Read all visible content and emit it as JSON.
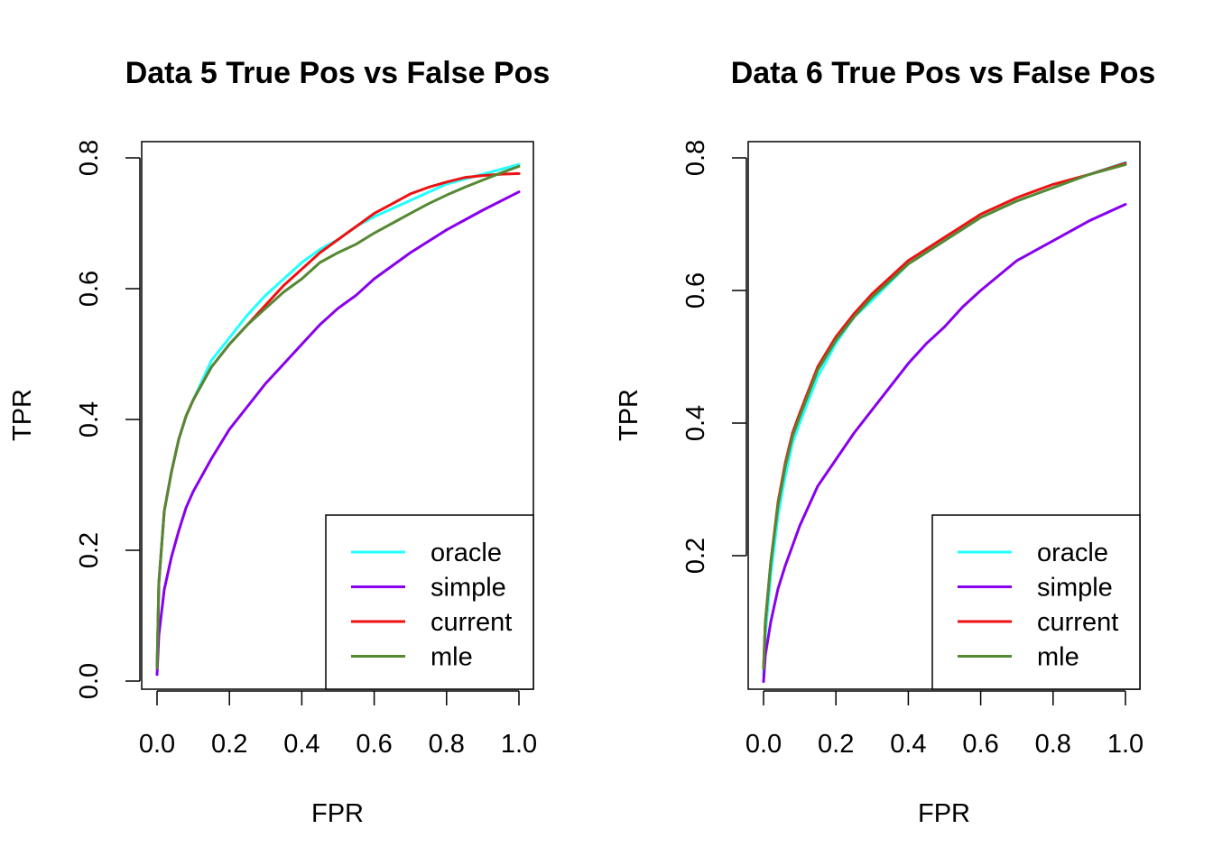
{
  "chart_data": [
    {
      "type": "line",
      "title": "Data 5 True Pos vs False Pos",
      "xlabel": "FPR",
      "ylabel": "TPR",
      "xlim": [
        0,
        1
      ],
      "ylim": [
        0,
        0.8
      ],
      "x_ticks": [
        "0.0",
        "0.2",
        "0.4",
        "0.6",
        "0.8",
        "1.0"
      ],
      "y_ticks": [
        "0.0",
        "0.2",
        "0.4",
        "0.6",
        "0.8"
      ],
      "legend_position": "bottom-right",
      "grid": false,
      "series": [
        {
          "name": "oracle",
          "color": "#22ffff",
          "x": [
            0,
            0.005,
            0.02,
            0.04,
            0.06,
            0.08,
            0.1,
            0.15,
            0.2,
            0.25,
            0.3,
            0.35,
            0.4,
            0.45,
            0.5,
            0.55,
            0.6,
            0.7,
            0.8,
            0.9,
            1.0
          ],
          "y": [
            0.02,
            0.15,
            0.26,
            0.32,
            0.37,
            0.405,
            0.43,
            0.49,
            0.525,
            0.56,
            0.59,
            0.615,
            0.64,
            0.66,
            0.675,
            0.695,
            0.71,
            0.735,
            0.76,
            0.775,
            0.79
          ]
        },
        {
          "name": "simple",
          "color": "#8800ee",
          "x": [
            0,
            0.005,
            0.02,
            0.04,
            0.06,
            0.08,
            0.1,
            0.15,
            0.2,
            0.25,
            0.3,
            0.35,
            0.4,
            0.45,
            0.5,
            0.55,
            0.6,
            0.7,
            0.8,
            0.9,
            1.0
          ],
          "y": [
            0.01,
            0.07,
            0.14,
            0.19,
            0.23,
            0.265,
            0.29,
            0.34,
            0.385,
            0.42,
            0.455,
            0.485,
            0.515,
            0.545,
            0.57,
            0.59,
            0.615,
            0.655,
            0.69,
            0.72,
            0.748
          ]
        },
        {
          "name": "current",
          "color": "#ee1111",
          "x": [
            0,
            0.005,
            0.02,
            0.04,
            0.06,
            0.08,
            0.1,
            0.15,
            0.2,
            0.25,
            0.3,
            0.35,
            0.4,
            0.45,
            0.5,
            0.55,
            0.6,
            0.65,
            0.7,
            0.75,
            0.8,
            0.85,
            0.9,
            0.95,
            1.0
          ],
          "y": [
            0.02,
            0.15,
            0.26,
            0.32,
            0.37,
            0.405,
            0.43,
            0.48,
            0.515,
            0.545,
            0.575,
            0.605,
            0.63,
            0.655,
            0.675,
            0.695,
            0.715,
            0.73,
            0.745,
            0.755,
            0.763,
            0.77,
            0.773,
            0.775,
            0.776
          ]
        },
        {
          "name": "mle",
          "color": "#558833",
          "x": [
            0,
            0.005,
            0.02,
            0.04,
            0.06,
            0.08,
            0.1,
            0.15,
            0.2,
            0.25,
            0.3,
            0.35,
            0.4,
            0.45,
            0.5,
            0.55,
            0.6,
            0.65,
            0.7,
            0.75,
            0.8,
            0.85,
            0.9,
            0.95,
            1.0
          ],
          "y": [
            0.02,
            0.15,
            0.26,
            0.32,
            0.37,
            0.405,
            0.43,
            0.48,
            0.515,
            0.545,
            0.57,
            0.595,
            0.615,
            0.64,
            0.655,
            0.668,
            0.685,
            0.7,
            0.715,
            0.73,
            0.743,
            0.755,
            0.766,
            0.777,
            0.787
          ]
        }
      ]
    },
    {
      "type": "line",
      "title": "Data 6 True Pos vs False Pos",
      "xlabel": "FPR",
      "ylabel": "TPR",
      "xlim": [
        0,
        1
      ],
      "ylim": [
        0,
        0.8
      ],
      "x_ticks": [
        "0.0",
        "0.2",
        "0.4",
        "0.6",
        "0.8",
        "1.0"
      ],
      "y_ticks": [
        "0.2",
        "0.4",
        "0.6",
        "0.8"
      ],
      "legend_position": "bottom-right",
      "grid": false,
      "series": [
        {
          "name": "oracle",
          "color": "#22ffff",
          "x": [
            0,
            0.005,
            0.02,
            0.04,
            0.06,
            0.08,
            0.1,
            0.15,
            0.2,
            0.25,
            0.3,
            0.4,
            0.5,
            0.6,
            0.7,
            0.8,
            0.9,
            1.0
          ],
          "y": [
            0.02,
            0.08,
            0.17,
            0.26,
            0.32,
            0.37,
            0.4,
            0.47,
            0.52,
            0.56,
            0.585,
            0.64,
            0.675,
            0.71,
            0.735,
            0.755,
            0.775,
            0.793
          ]
        },
        {
          "name": "simple",
          "color": "#8800ee",
          "x": [
            0,
            0.005,
            0.02,
            0.04,
            0.06,
            0.08,
            0.1,
            0.15,
            0.2,
            0.25,
            0.3,
            0.35,
            0.4,
            0.45,
            0.5,
            0.55,
            0.6,
            0.7,
            0.8,
            0.9,
            1.0
          ],
          "y": [
            0.01,
            0.05,
            0.1,
            0.15,
            0.185,
            0.215,
            0.245,
            0.305,
            0.345,
            0.385,
            0.42,
            0.455,
            0.49,
            0.52,
            0.545,
            0.575,
            0.6,
            0.645,
            0.675,
            0.705,
            0.73
          ]
        },
        {
          "name": "current",
          "color": "#ee1111",
          "x": [
            0,
            0.005,
            0.02,
            0.04,
            0.06,
            0.08,
            0.1,
            0.15,
            0.2,
            0.25,
            0.3,
            0.4,
            0.5,
            0.6,
            0.7,
            0.8,
            0.9,
            1.0
          ],
          "y": [
            0.03,
            0.1,
            0.19,
            0.28,
            0.34,
            0.385,
            0.415,
            0.485,
            0.53,
            0.565,
            0.595,
            0.645,
            0.68,
            0.715,
            0.74,
            0.76,
            0.775,
            0.792
          ]
        },
        {
          "name": "mle",
          "color": "#558833",
          "x": [
            0,
            0.005,
            0.02,
            0.04,
            0.06,
            0.08,
            0.1,
            0.15,
            0.2,
            0.25,
            0.3,
            0.4,
            0.5,
            0.6,
            0.7,
            0.8,
            0.9,
            1.0
          ],
          "y": [
            0.03,
            0.1,
            0.19,
            0.275,
            0.335,
            0.38,
            0.41,
            0.48,
            0.525,
            0.56,
            0.59,
            0.64,
            0.675,
            0.71,
            0.735,
            0.755,
            0.775,
            0.79
          ]
        }
      ]
    }
  ]
}
